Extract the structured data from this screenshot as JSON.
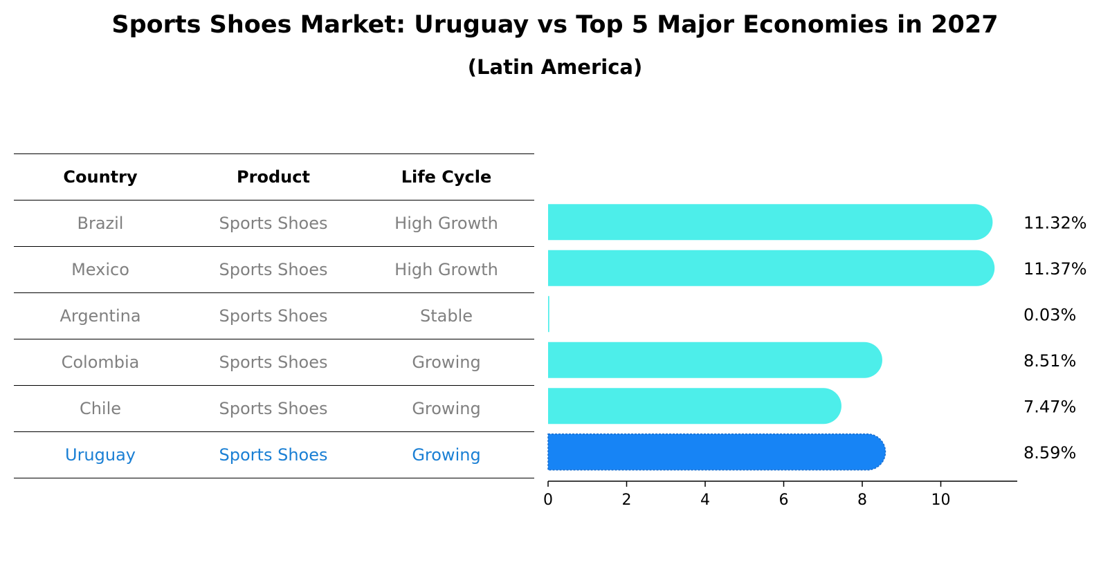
{
  "title": "Sports Shoes Market: Uruguay vs Top 5 Major Economies in 2027",
  "subtitle": "(Latin America)",
  "table": {
    "headers": [
      "Country",
      "Product",
      "Life Cycle"
    ],
    "rows": [
      [
        "Brazil",
        "Sports Shoes",
        "High Growth"
      ],
      [
        "Mexico",
        "Sports Shoes",
        "High Growth"
      ],
      [
        "Argentina",
        "Sports Shoes",
        "Stable"
      ],
      [
        "Colombia",
        "Sports Shoes",
        "Growing"
      ],
      [
        "Chile",
        "Sports Shoes",
        "Growing"
      ],
      [
        "Uruguay",
        "Sports Shoes",
        "Growing"
      ]
    ],
    "highlight_row": 5
  },
  "colors": {
    "bar": "#4deeea",
    "highlight_bar": "#1784f5",
    "muted_text": "#808080",
    "highlight_text": "#1a7fd4"
  },
  "chart_data": {
    "type": "bar",
    "orientation": "horizontal",
    "categories": [
      "Brazil",
      "Mexico",
      "Argentina",
      "Colombia",
      "Chile",
      "Uruguay"
    ],
    "values": [
      11.32,
      11.37,
      0.03,
      8.51,
      7.47,
      8.59
    ],
    "value_labels": [
      "11.32%",
      "11.37%",
      "0.03%",
      "8.51%",
      "7.47%",
      "8.59%"
    ],
    "highlight": "Uruguay",
    "xlim": [
      0,
      12
    ],
    "xticks": [
      0,
      2,
      4,
      6,
      8,
      10
    ],
    "xtick_labels": [
      "0",
      "2",
      "4",
      "6",
      "8",
      "10"
    ],
    "grid": false
  }
}
